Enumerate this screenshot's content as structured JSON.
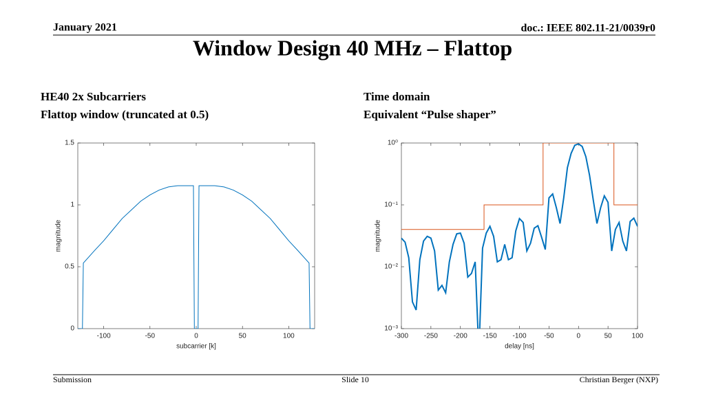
{
  "header": {
    "date": "January 2021",
    "doc": "doc.: IEEE 802.11-21/0039r0",
    "title": "Window Design 40 MHz – Flattop"
  },
  "captions": {
    "left": [
      "HE40 2x Subcarriers",
      "Flattop window (truncated at 0.5)"
    ],
    "right": [
      "Time domain",
      "Equivalent “Pulse shaper”"
    ]
  },
  "footer": {
    "left": "Submission",
    "center": "Slide 10",
    "right": "Christian Berger (NXP)"
  },
  "chart_data": [
    {
      "type": "line",
      "xlabel": "subcarrier [k]",
      "ylabel": "magnitude",
      "xlim": [
        -128,
        128
      ],
      "ylim": [
        0,
        1.5
      ],
      "xticks": [
        -100,
        -50,
        0,
        50,
        100
      ],
      "yticks": [
        0,
        0.5,
        1,
        1.5
      ],
      "yscale": "linear",
      "series": [
        {
          "color": "#0072bd",
          "x": [
            -128,
            -123,
            -122,
            -110,
            -100,
            -90,
            -80,
            -70,
            -60,
            -50,
            -40,
            -30,
            -20,
            -10,
            -3,
            -2,
            2,
            3,
            10,
            20,
            30,
            40,
            50,
            60,
            70,
            80,
            90,
            100,
            110,
            122,
            123,
            128
          ],
          "values": [
            0,
            0,
            0.53,
            0.63,
            0.71,
            0.8,
            0.89,
            0.96,
            1.03,
            1.08,
            1.12,
            1.145,
            1.155,
            1.155,
            1.155,
            0,
            0,
            1.155,
            1.155,
            1.155,
            1.145,
            1.12,
            1.08,
            1.03,
            0.96,
            0.89,
            0.8,
            0.71,
            0.63,
            0.53,
            0,
            0
          ]
        }
      ]
    },
    {
      "type": "line",
      "xlabel": "delay [ns]",
      "ylabel": "magnitude",
      "xlim": [
        -300,
        100
      ],
      "ylim": [
        0.001,
        1
      ],
      "xticks": [
        -300,
        -250,
        -200,
        -150,
        -100,
        -50,
        0,
        50,
        100
      ],
      "yticks": [
        {
          "value": 0.001,
          "label": "10⁻³"
        },
        {
          "value": 0.01,
          "label": "10⁻²"
        },
        {
          "value": 0.1,
          "label": "10⁻¹"
        },
        {
          "value": 1,
          "label": "10⁰"
        }
      ],
      "yscale": "log",
      "series": [
        {
          "color": "#d95319",
          "x": [
            -300,
            -160,
            -160,
            -60,
            -60,
            60,
            60,
            100
          ],
          "values": [
            0.04,
            0.04,
            0.1,
            0.1,
            1,
            1,
            0.1,
            0.1
          ]
        },
        {
          "color": "#0072bd",
          "x": [
            -300,
            -293.75,
            -287.5,
            -281.25,
            -275,
            -268.75,
            -262.5,
            -256.25,
            -250,
            -243.75,
            -237.5,
            -231.25,
            -225,
            -218.75,
            -212.5,
            -206.25,
            -200,
            -193.75,
            -187.5,
            -181.25,
            -175,
            -168.75,
            -162.5,
            -156.25,
            -150,
            -143.75,
            -137.5,
            -131.25,
            -125,
            -118.75,
            -112.5,
            -106.25,
            -100,
            -93.75,
            -87.5,
            -81.25,
            -75,
            -68.75,
            -62.5,
            -56.25,
            -50,
            -43.75,
            -37.5,
            -31.25,
            -25,
            -18.75,
            -12.5,
            -6.25,
            0,
            6.25,
            12.5,
            18.75,
            25,
            31.25,
            37.5,
            43.75,
            50,
            56.25,
            62.5,
            68.75,
            75,
            81.25,
            87.5,
            93.75,
            100
          ],
          "values": [
            0.029,
            0.025,
            0.014,
            0.0027,
            0.002,
            0.013,
            0.026,
            0.031,
            0.029,
            0.018,
            0.0042,
            0.005,
            0.0038,
            0.012,
            0.023,
            0.034,
            0.035,
            0.024,
            0.0068,
            0.0078,
            0.012,
            0.0004,
            0.02,
            0.035,
            0.045,
            0.031,
            0.012,
            0.013,
            0.023,
            0.013,
            0.014,
            0.038,
            0.06,
            0.052,
            0.018,
            0.024,
            0.042,
            0.046,
            0.03,
            0.019,
            0.13,
            0.15,
            0.09,
            0.05,
            0.13,
            0.4,
            0.68,
            0.92,
            0.97,
            0.88,
            0.6,
            0.3,
            0.12,
            0.05,
            0.09,
            0.14,
            0.11,
            0.018,
            0.04,
            0.052,
            0.026,
            0.018,
            0.054,
            0.061,
            0.045
          ]
        }
      ]
    }
  ]
}
